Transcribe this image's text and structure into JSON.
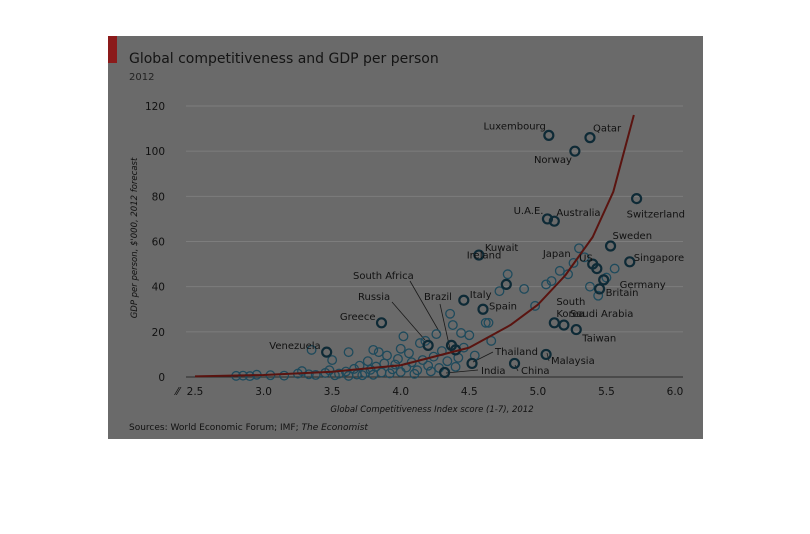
{
  "chart_data": {
    "type": "scatter",
    "title": "Global competitiveness and GDP per person",
    "subtitle": "2012",
    "xlabel": "Global Competitiveness Index score (1-7), 2012",
    "ylabel": "GDP per person, $'000, 2012 forecast",
    "xlim": [
      2.5,
      6.0
    ],
    "ylim": [
      0,
      120
    ],
    "x_ticks": [
      "2.5",
      "3.0",
      "3.5",
      "4.0",
      "4.5",
      "5.0",
      "5.5",
      "6.0"
    ],
    "y_ticks": [
      "0",
      "20",
      "40",
      "60",
      "80",
      "100",
      "120"
    ],
    "grid": "horizontal",
    "axis_break": "⁄⁄",
    "source_text": "Sources: World Economic Forum; IMF;",
    "source_italic": "The Economist",
    "colors": {
      "panel": "#6a6a6a",
      "accent": "#8b1a1a",
      "trend": "#5a1410",
      "point_stroke": "#1e4a5c",
      "highlight_stroke": "#0e2a36",
      "gridline": "#7d7d7d",
      "leader": "#1a1a1a"
    },
    "trendline": [
      {
        "x": 2.5,
        "y": 0.3
      },
      {
        "x": 3.0,
        "y": 0.9
      },
      {
        "x": 3.5,
        "y": 2.3
      },
      {
        "x": 4.0,
        "y": 5.2
      },
      {
        "x": 4.5,
        "y": 13
      },
      {
        "x": 4.8,
        "y": 23
      },
      {
        "x": 5.0,
        "y": 32
      },
      {
        "x": 5.2,
        "y": 45
      },
      {
        "x": 5.4,
        "y": 62
      },
      {
        "x": 5.55,
        "y": 82
      },
      {
        "x": 5.7,
        "y": 116
      }
    ],
    "labeled_points": [
      {
        "name": "Luxembourg",
        "x": 5.08,
        "y": 107
      },
      {
        "name": "Qatar",
        "x": 5.38,
        "y": 106
      },
      {
        "name": "Norway",
        "x": 5.27,
        "y": 100
      },
      {
        "name": "Switzerland",
        "x": 5.72,
        "y": 79
      },
      {
        "name": "U.A.E.",
        "x": 5.07,
        "y": 70
      },
      {
        "name": "Australia",
        "x": 5.12,
        "y": 69
      },
      {
        "name": "Sweden",
        "x": 5.53,
        "y": 58
      },
      {
        "name": "Singapore",
        "x": 5.67,
        "y": 51
      },
      {
        "name": "US",
        "x": 5.43,
        "y": 48
      },
      {
        "name": "Japan",
        "x": 5.4,
        "y": 50
      },
      {
        "name": "Germany",
        "x": 5.48,
        "y": 43
      },
      {
        "name": "Britain",
        "x": 5.45,
        "y": 39
      },
      {
        "name": "Kuwait",
        "x": 4.57,
        "y": 54
      },
      {
        "name": "Ireland",
        "x": 4.77,
        "y": 41
      },
      {
        "name": "Italy",
        "x": 4.46,
        "y": 34
      },
      {
        "name": "Spain",
        "x": 4.6,
        "y": 30
      },
      {
        "name": "South Korea",
        "x": 5.12,
        "y": 24
      },
      {
        "name": "Saudi Arabia",
        "x": 5.19,
        "y": 23
      },
      {
        "name": "Taiwan",
        "x": 5.28,
        "y": 21
      },
      {
        "name": "Greece",
        "x": 3.86,
        "y": 24
      },
      {
        "name": "Venezuela",
        "x": 3.46,
        "y": 11
      },
      {
        "name": "South Africa",
        "x": 4.37,
        "y": 14
      },
      {
        "name": "Russia",
        "x": 4.2,
        "y": 14
      },
      {
        "name": "Brazil",
        "x": 4.4,
        "y": 12
      },
      {
        "name": "Thailand",
        "x": 4.52,
        "y": 6
      },
      {
        "name": "India",
        "x": 4.32,
        "y": 2
      },
      {
        "name": "China",
        "x": 4.83,
        "y": 6
      },
      {
        "name": "Malaysia",
        "x": 5.06,
        "y": 10
      }
    ],
    "other_points": [
      [
        2.8,
        0.5
      ],
      [
        2.85,
        0.6
      ],
      [
        2.9,
        0.4
      ],
      [
        2.95,
        1.0
      ],
      [
        3.05,
        0.8
      ],
      [
        3.15,
        0.6
      ],
      [
        3.25,
        1.5
      ],
      [
        3.28,
        2.6
      ],
      [
        3.33,
        1.2
      ],
      [
        3.38,
        0.9
      ],
      [
        3.45,
        1.8
      ],
      [
        3.48,
        3.0
      ],
      [
        3.52,
        0.8
      ],
      [
        3.55,
        1.5
      ],
      [
        3.6,
        2.4
      ],
      [
        3.62,
        0.5
      ],
      [
        3.66,
        3.6
      ],
      [
        3.68,
        1.1
      ],
      [
        3.7,
        5.0
      ],
      [
        3.72,
        0.8
      ],
      [
        3.74,
        1.8
      ],
      [
        3.76,
        7.0
      ],
      [
        3.78,
        3.2
      ],
      [
        3.8,
        1.0
      ],
      [
        3.82,
        4.6
      ],
      [
        3.84,
        11.0
      ],
      [
        3.86,
        2.0
      ],
      [
        3.88,
        6.0
      ],
      [
        3.9,
        9.5
      ],
      [
        3.92,
        1.6
      ],
      [
        3.94,
        3.4
      ],
      [
        3.96,
        5.5
      ],
      [
        3.98,
        8.0
      ],
      [
        4.0,
        2.2
      ],
      [
        4.02,
        18.0
      ],
      [
        4.04,
        4.2
      ],
      [
        4.06,
        10.5
      ],
      [
        4.08,
        6.5
      ],
      [
        4.1,
        1.4
      ],
      [
        4.12,
        3.0
      ],
      [
        4.14,
        15.0
      ],
      [
        4.16,
        7.5
      ],
      [
        4.18,
        16.0
      ],
      [
        4.2,
        5.0
      ],
      [
        4.22,
        2.5
      ],
      [
        4.24,
        9.0
      ],
      [
        4.26,
        19.0
      ],
      [
        4.28,
        4.0
      ],
      [
        4.3,
        11.5
      ],
      [
        4.34,
        7.0
      ],
      [
        4.36,
        28.0
      ],
      [
        4.38,
        23.0
      ],
      [
        4.4,
        4.5
      ],
      [
        4.42,
        8.5
      ],
      [
        4.44,
        19.5
      ],
      [
        4.46,
        13.0
      ],
      [
        4.5,
        18.5
      ],
      [
        4.54,
        9.5
      ],
      [
        4.62,
        24.0
      ],
      [
        4.64,
        24.0
      ],
      [
        4.66,
        16.0
      ],
      [
        4.72,
        38.0
      ],
      [
        4.78,
        45.5
      ],
      [
        4.9,
        39.0
      ],
      [
        4.98,
        31.5
      ],
      [
        5.06,
        41.0
      ],
      [
        5.1,
        42.5
      ],
      [
        5.16,
        47.0
      ],
      [
        5.22,
        45.5
      ],
      [
        5.26,
        50.5
      ],
      [
        5.3,
        57.0
      ],
      [
        5.34,
        53.0
      ],
      [
        5.38,
        40.0
      ],
      [
        5.44,
        36.0
      ],
      [
        5.5,
        44.0
      ],
      [
        5.56,
        48.0
      ],
      [
        3.35,
        12.0
      ],
      [
        3.5,
        7.5
      ],
      [
        3.62,
        11.0
      ],
      [
        3.8,
        12.0
      ],
      [
        4.0,
        12.5
      ]
    ]
  }
}
